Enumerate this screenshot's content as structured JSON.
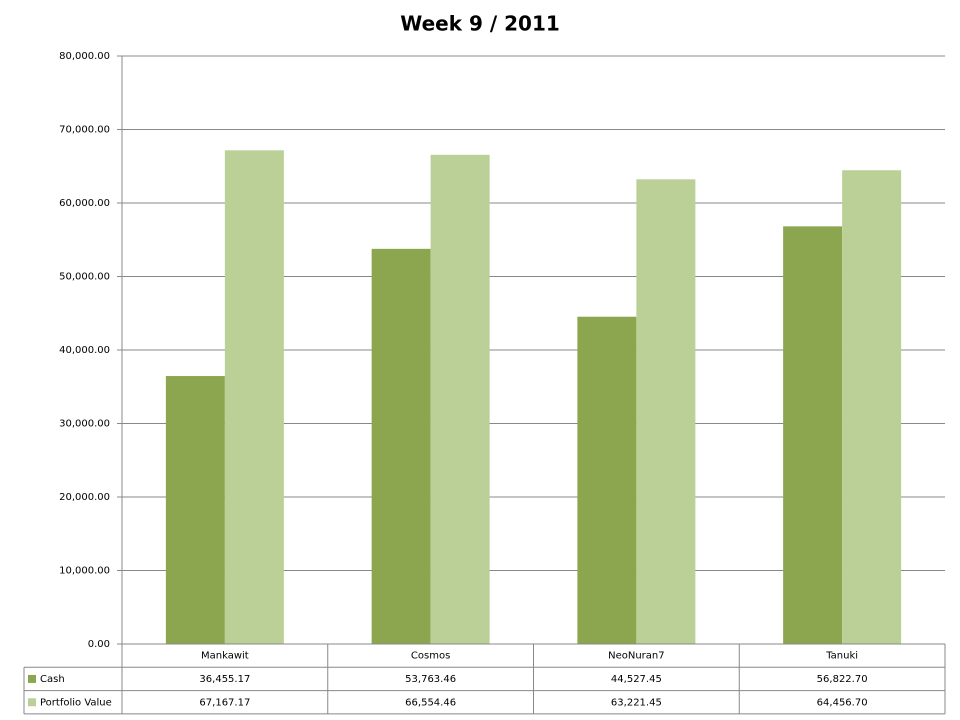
{
  "chart_data": {
    "type": "bar",
    "title": "Week 9 / 2011",
    "categories": [
      "Mankawit",
      "Cosmos",
      "NeoNuran7",
      "Tanuki"
    ],
    "series": [
      {
        "name": "Cash",
        "color": "#8ba64e",
        "values": [
          36455.17,
          53763.46,
          44527.45,
          56822.7
        ],
        "value_labels": [
          "36,455.17",
          "53,763.46",
          "44,527.45",
          "56,822.70"
        ]
      },
      {
        "name": "Portfolio Value",
        "color": "#bbd096",
        "values": [
          67167.17,
          66554.46,
          63221.45,
          64456.7
        ],
        "value_labels": [
          "67,167.17",
          "66,554.46",
          "63,221.45",
          "64,456.70"
        ]
      }
    ],
    "ylim": [
      0,
      80000
    ],
    "yticks": [
      {
        "value": 0,
        "label": "0.00"
      },
      {
        "value": 10000,
        "label": "10,000.00"
      },
      {
        "value": 20000,
        "label": "20,000.00"
      },
      {
        "value": 30000,
        "label": "30,000.00"
      },
      {
        "value": 40000,
        "label": "40,000.00"
      },
      {
        "value": 50000,
        "label": "50,000.00"
      },
      {
        "value": 60000,
        "label": "60,000.00"
      },
      {
        "value": 70000,
        "label": "70,000.00"
      },
      {
        "value": 80000,
        "label": "80,000.00"
      }
    ],
    "grid": true
  }
}
